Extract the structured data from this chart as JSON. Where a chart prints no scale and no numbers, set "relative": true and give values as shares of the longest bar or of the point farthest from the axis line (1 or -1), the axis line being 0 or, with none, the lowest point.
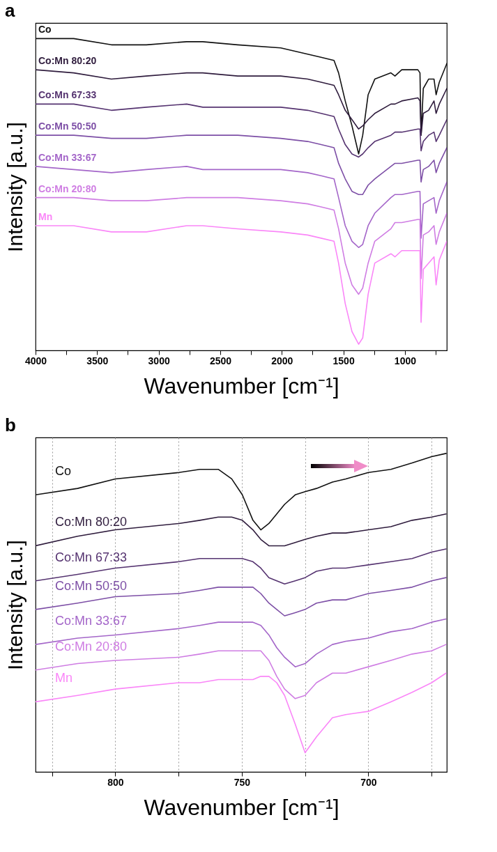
{
  "chart_data": [
    {
      "type": "line",
      "title": "a",
      "xlabel": "Wavenumber [cm⁻¹]",
      "ylabel": "Intensity [a.u.]",
      "relative": true,
      "xlim": [
        4000,
        660
      ],
      "xticks": [
        4000,
        {
          "value": 3750,
          "label": null
        },
        3500,
        {
          "value": 3250,
          "label": null
        },
        3000,
        {
          "value": 2750,
          "label": null
        },
        2500,
        {
          "value": 2250,
          "label": null
        },
        2000,
        {
          "value": 1750,
          "label": null
        },
        1500,
        {
          "value": 1250,
          "label": null
        },
        1000,
        {
          "value": 750,
          "label": null
        }
      ],
      "x": [
        4000,
        3690,
        3384,
        3100,
        2773,
        2642,
        2358,
        2009,
        1790,
        1681,
        1576,
        1539,
        1485,
        1430,
        1376,
        1343,
        1299,
        1245,
        1114,
        1081,
        1026,
        895,
        878,
        869,
        851,
        808,
        764,
        747,
        721,
        660
      ],
      "series": [
        {
          "name": "Co",
          "color": "#111111",
          "values": [
            1.0,
            1.0,
            0.98,
            0.98,
            0.99,
            0.99,
            0.98,
            0.97,
            0.95,
            0.94,
            0.93,
            0.89,
            0.8,
            0.72,
            0.63,
            0.69,
            0.82,
            0.87,
            0.89,
            0.88,
            0.9,
            0.9,
            0.89,
            0.69,
            0.84,
            0.87,
            0.87,
            0.82,
            0.86,
            0.92
          ]
        },
        {
          "name": "Co:Mn 80:20",
          "color": "#2f1c3d",
          "values": [
            0.9,
            0.89,
            0.87,
            0.88,
            0.89,
            0.89,
            0.88,
            0.88,
            0.87,
            0.86,
            0.85,
            0.82,
            0.77,
            0.74,
            0.71,
            0.72,
            0.74,
            0.76,
            0.79,
            0.79,
            0.8,
            0.81,
            0.8,
            0.69,
            0.76,
            0.77,
            0.8,
            0.76,
            0.79,
            0.84
          ]
        },
        {
          "name": "Co:Mn 67:33",
          "color": "#553370",
          "values": [
            0.79,
            0.79,
            0.77,
            0.78,
            0.79,
            0.78,
            0.78,
            0.78,
            0.77,
            0.76,
            0.75,
            0.71,
            0.66,
            0.63,
            0.62,
            0.63,
            0.65,
            0.67,
            0.69,
            0.7,
            0.7,
            0.71,
            0.71,
            0.64,
            0.67,
            0.69,
            0.7,
            0.67,
            0.69,
            0.74
          ]
        },
        {
          "name": "Co:Mn 50:50",
          "color": "#7d4fa6",
          "values": [
            0.69,
            0.69,
            0.68,
            0.68,
            0.69,
            0.69,
            0.69,
            0.68,
            0.67,
            0.66,
            0.65,
            0.6,
            0.55,
            0.51,
            0.5,
            0.5,
            0.53,
            0.55,
            0.59,
            0.6,
            0.6,
            0.61,
            0.61,
            0.54,
            0.58,
            0.59,
            0.61,
            0.57,
            0.6,
            0.65
          ]
        },
        {
          "name": "Co:Mn 33:67",
          "color": "#a466c9",
          "values": [
            0.59,
            0.58,
            0.57,
            0.58,
            0.59,
            0.58,
            0.58,
            0.58,
            0.57,
            0.56,
            0.55,
            0.49,
            0.4,
            0.35,
            0.33,
            0.34,
            0.4,
            0.44,
            0.49,
            0.5,
            0.5,
            0.51,
            0.51,
            0.36,
            0.47,
            0.48,
            0.49,
            0.44,
            0.48,
            0.54
          ]
        },
        {
          "name": "Co:Mn 20:80",
          "color": "#cf7de3",
          "values": [
            0.49,
            0.49,
            0.48,
            0.48,
            0.49,
            0.49,
            0.49,
            0.48,
            0.47,
            0.46,
            0.45,
            0.39,
            0.28,
            0.21,
            0.18,
            0.2,
            0.28,
            0.35,
            0.39,
            0.41,
            0.41,
            0.42,
            0.42,
            0.23,
            0.37,
            0.38,
            0.4,
            0.34,
            0.38,
            0.44
          ]
        },
        {
          "name": "Mn",
          "color": "#fa86f8",
          "values": [
            0.4,
            0.4,
            0.38,
            0.38,
            0.4,
            0.4,
            0.39,
            0.38,
            0.37,
            0.36,
            0.35,
            0.28,
            0.15,
            0.06,
            0.02,
            0.04,
            0.18,
            0.28,
            0.31,
            0.3,
            0.32,
            0.32,
            0.32,
            0.09,
            0.26,
            0.28,
            0.3,
            0.21,
            0.29,
            0.35
          ]
        }
      ]
    },
    {
      "type": "line",
      "title": "b",
      "xlabel": "Wavenumber [cm⁻¹]",
      "ylabel": "Intensity [a.u.]",
      "relative": true,
      "grid": "x",
      "xlim": [
        831.5,
        669
      ],
      "xticks": [
        {
          "value": 825,
          "label": null
        },
        800,
        {
          "value": 775,
          "label": null
        },
        750,
        {
          "value": 725,
          "label": null
        },
        700,
        {
          "value": 675,
          "label": null
        }
      ],
      "x": [
        831.5,
        814.9,
        800,
        774.9,
        766.6,
        759.3,
        754.0,
        749.8,
        745.6,
        742.5,
        739.3,
        736.2,
        733.1,
        728.9,
        725.0,
        720.5,
        714.2,
        708.9,
        700.0,
        691.1,
        682.7,
        675.0,
        669.3
      ],
      "series": [
        {
          "name": "Co",
          "color": "#111111",
          "values": [
            0.87,
            0.89,
            0.92,
            0.94,
            0.95,
            0.95,
            0.92,
            0.87,
            0.79,
            0.76,
            0.78,
            0.81,
            0.84,
            0.87,
            0.88,
            0.89,
            0.91,
            0.92,
            0.94,
            0.95,
            0.97,
            0.99,
            1.0
          ]
        },
        {
          "name": "Co:Mn 80:20",
          "color": "#2f1c3d",
          "values": [
            0.71,
            0.74,
            0.76,
            0.78,
            0.79,
            0.8,
            0.8,
            0.79,
            0.76,
            0.73,
            0.71,
            0.71,
            0.71,
            0.72,
            0.73,
            0.74,
            0.75,
            0.75,
            0.76,
            0.77,
            0.79,
            0.8,
            0.81
          ]
        },
        {
          "name": "Co:Mn 67:33",
          "color": "#553370",
          "values": [
            0.6,
            0.62,
            0.64,
            0.66,
            0.67,
            0.67,
            0.67,
            0.67,
            0.66,
            0.64,
            0.61,
            0.6,
            0.59,
            0.6,
            0.61,
            0.63,
            0.64,
            0.64,
            0.65,
            0.66,
            0.67,
            0.69,
            0.7
          ]
        },
        {
          "name": "Co:Mn 50:50",
          "color": "#7d4fa6",
          "values": [
            0.51,
            0.53,
            0.55,
            0.56,
            0.57,
            0.58,
            0.58,
            0.58,
            0.58,
            0.56,
            0.53,
            0.51,
            0.49,
            0.5,
            0.51,
            0.53,
            0.54,
            0.54,
            0.56,
            0.57,
            0.58,
            0.6,
            0.61
          ]
        },
        {
          "name": "Co:Mn 33:67",
          "color": "#a466c9",
          "values": [
            0.4,
            0.42,
            0.43,
            0.45,
            0.46,
            0.47,
            0.47,
            0.47,
            0.47,
            0.46,
            0.43,
            0.39,
            0.36,
            0.33,
            0.34,
            0.37,
            0.4,
            0.41,
            0.42,
            0.44,
            0.45,
            0.47,
            0.48
          ]
        },
        {
          "name": "Co:Mn 20:80",
          "color": "#cf7de3",
          "values": [
            0.32,
            0.34,
            0.35,
            0.36,
            0.37,
            0.38,
            0.38,
            0.38,
            0.38,
            0.38,
            0.35,
            0.3,
            0.26,
            0.23,
            0.24,
            0.28,
            0.31,
            0.31,
            0.33,
            0.35,
            0.37,
            0.38,
            0.4
          ]
        },
        {
          "name": "Mn",
          "color": "#fa86f8",
          "values": [
            0.22,
            0.24,
            0.26,
            0.28,
            0.28,
            0.29,
            0.29,
            0.29,
            0.29,
            0.3,
            0.3,
            0.28,
            0.24,
            0.15,
            0.06,
            0.11,
            0.17,
            0.18,
            0.19,
            0.22,
            0.25,
            0.28,
            0.31
          ]
        }
      ]
    }
  ]
}
